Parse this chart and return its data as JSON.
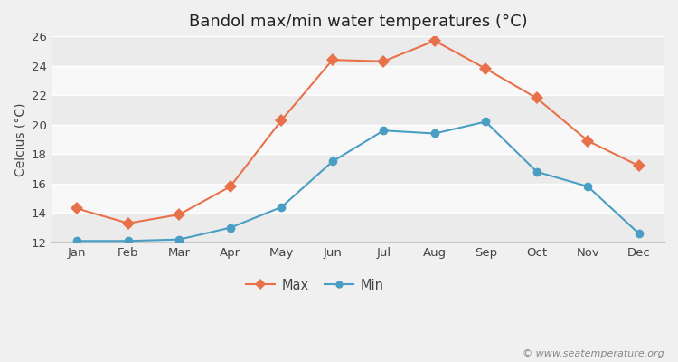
{
  "title": "Bandol max/min water temperatures (°C)",
  "ylabel": "Celcius (°C)",
  "months": [
    "Jan",
    "Feb",
    "Mar",
    "Apr",
    "May",
    "Jun",
    "Jul",
    "Aug",
    "Sep",
    "Oct",
    "Nov",
    "Dec"
  ],
  "max_temps": [
    14.3,
    13.3,
    13.9,
    15.8,
    20.3,
    24.4,
    24.3,
    25.7,
    23.8,
    21.8,
    18.9,
    17.2
  ],
  "min_temps": [
    12.1,
    12.1,
    12.2,
    13.0,
    14.4,
    17.5,
    19.6,
    19.4,
    20.2,
    16.8,
    15.8,
    12.6
  ],
  "max_color": "#e8714a",
  "min_color": "#4a9ec4",
  "bg_color": "#f0f0f0",
  "band_colors": [
    "#ebebeb",
    "#f8f8f8"
  ],
  "grid_line_color": "#ffffff",
  "ylim": [
    12,
    26
  ],
  "yticks": [
    12,
    14,
    16,
    18,
    20,
    22,
    24,
    26
  ],
  "legend_labels": [
    "Max",
    "Min"
  ],
  "watermark": "© www.seatemperature.org",
  "title_fontsize": 13,
  "label_fontsize": 10,
  "tick_fontsize": 9.5,
  "watermark_fontsize": 8
}
